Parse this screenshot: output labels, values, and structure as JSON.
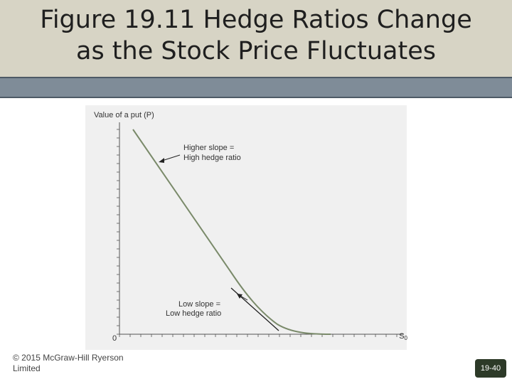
{
  "slide": {
    "title_line1": "Figure 19.11 Hedge Ratios Change",
    "title_line2": "as the Stock Price Fluctuates",
    "copyright_line1": "© 2015 McGraw-Hill Ryerson",
    "copyright_line2": "Limited",
    "page_number": "19-40"
  },
  "figure": {
    "y_axis_label": "Value of a put (P)",
    "x_axis_label": "S",
    "x_axis_label_sub": "0",
    "origin_label": "0",
    "annotation_high_line1": "Higher slope =",
    "annotation_high_line2": "High hedge ratio",
    "annotation_low_line1": "Low slope =",
    "annotation_low_line2": "Low hedge ratio"
  },
  "colors": {
    "title_band": "#d7d4c5",
    "title_bar": "#7f8c98",
    "curve": "#7a8a6a",
    "page_badge": "#2d3a28"
  }
}
